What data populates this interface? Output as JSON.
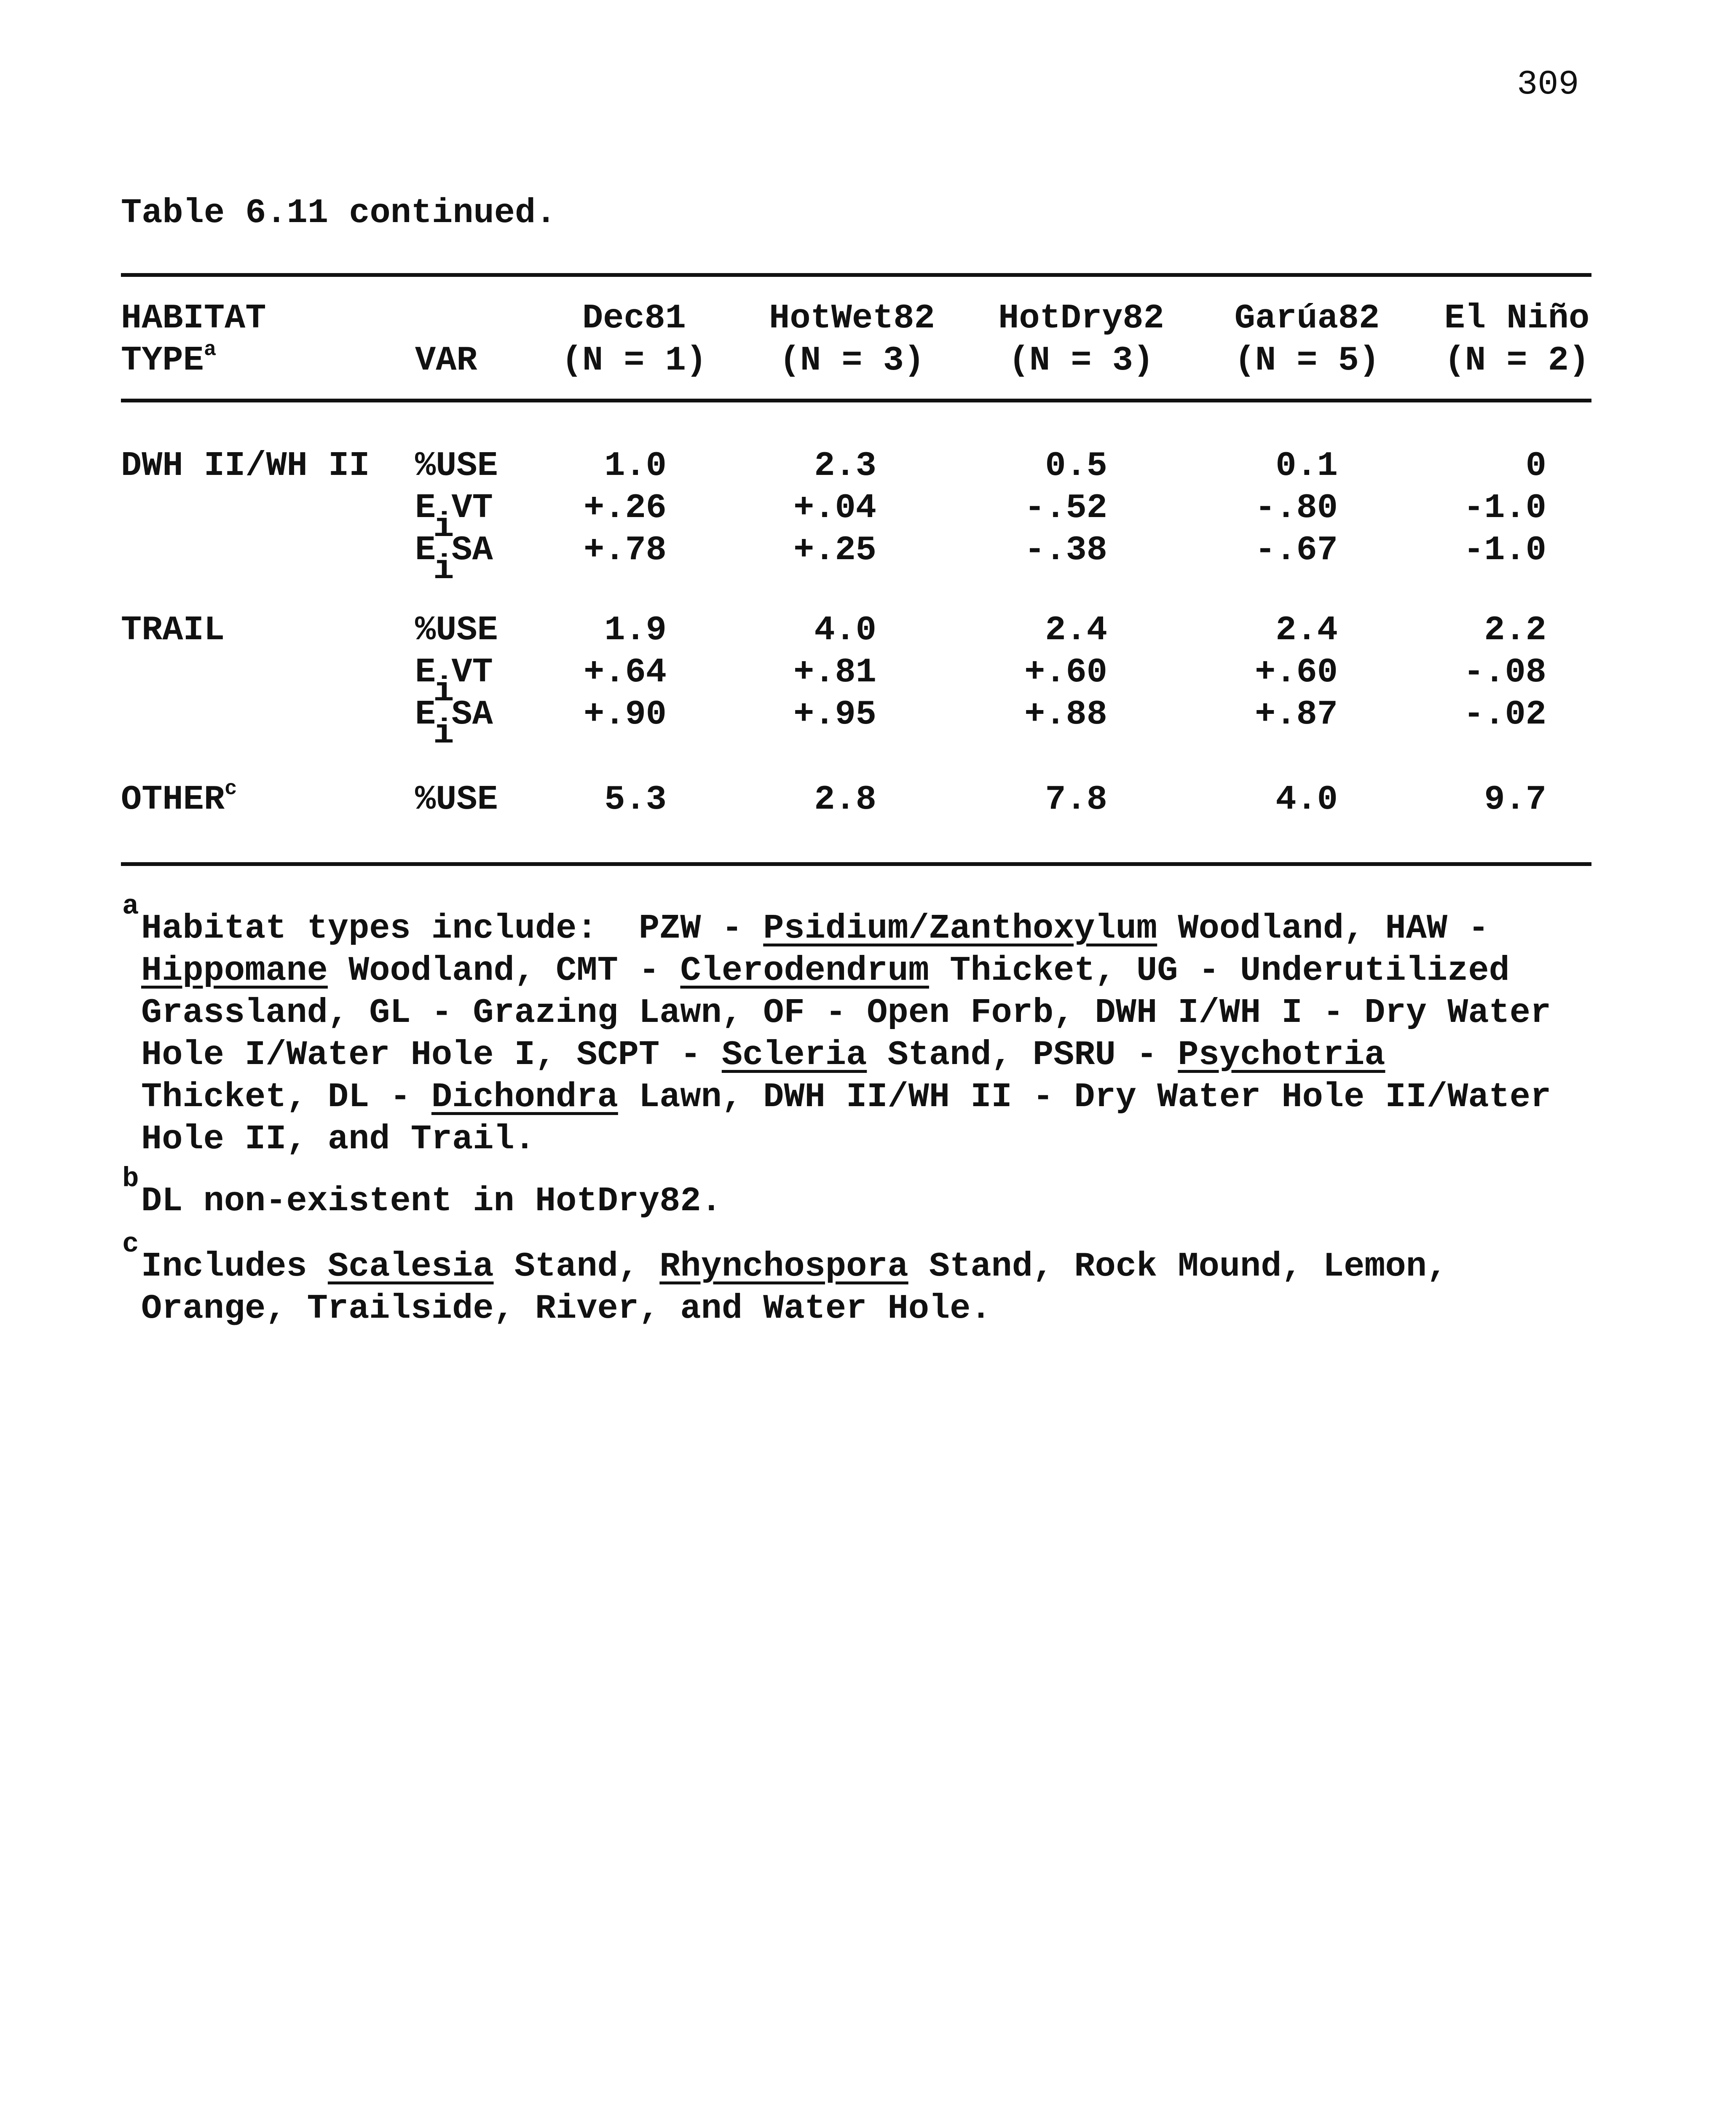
{
  "page_number": "309",
  "caption": "Table 6.11 continued.",
  "table": {
    "header": {
      "habitat_line1": "HABITAT",
      "habitat_line2": "TYPE",
      "habitat_sup": "a",
      "var": "VAR",
      "columns": [
        {
          "name": "Dec81",
          "n": "(N = 1)"
        },
        {
          "name": "HotWet82",
          "n": "(N = 3)"
        },
        {
          "name": "HotDry82",
          "n": "(N = 3)"
        },
        {
          "name": "Garúa82",
          "n": "(N = 5)"
        },
        {
          "name": "El Niño",
          "n": "(N = 2)"
        }
      ]
    },
    "groups": [
      {
        "habitat": "DWH II/WH II",
        "sup": "",
        "rows": [
          {
            "var": "%USE",
            "values": [
              "1.0",
              "2.3",
              "0.5",
              "0.1",
              "0"
            ]
          },
          {
            "var": "E",
            "var_sub": "i",
            "var_rest": "VT",
            "values": [
              "+.26",
              "+.04",
              "-.52",
              "-.80",
              "-1.0"
            ]
          },
          {
            "var": "E",
            "var_sub": "i",
            "var_rest": "SA",
            "values": [
              "+.78",
              "+.25",
              "-.38",
              "-.67",
              "-1.0"
            ]
          }
        ]
      },
      {
        "habitat": "TRAIL",
        "sup": "",
        "rows": [
          {
            "var": "%USE",
            "values": [
              "1.9",
              "4.0",
              "2.4",
              "2.4",
              "2.2"
            ]
          },
          {
            "var": "E",
            "var_sub": "i",
            "var_rest": "VT",
            "values": [
              "+.64",
              "+.81",
              "+.60",
              "+.60",
              "-.08"
            ]
          },
          {
            "var": "E",
            "var_sub": "i",
            "var_rest": "SA",
            "values": [
              "+.90",
              "+.95",
              "+.88",
              "+.87",
              "-.02"
            ]
          }
        ]
      },
      {
        "habitat": "OTHER",
        "sup": "c",
        "rows": [
          {
            "var": "%USE",
            "values": [
              "5.3",
              "2.8",
              "7.8",
              "4.0",
              "9.7"
            ]
          }
        ]
      }
    ]
  },
  "footnotes": [
    {
      "mark": "a",
      "lines": [
        [
          {
            "t": "Habitat types include:  PZW - "
          },
          {
            "t": "Psidium/Zanthoxylum",
            "u": true
          },
          {
            "t": " Woodland, HAW -"
          }
        ],
        [
          {
            "t": "Hippomane",
            "u": true
          },
          {
            "t": " Woodland, CMT - "
          },
          {
            "t": "Clerodendrum",
            "u": true
          },
          {
            "t": " Thicket, UG - Underutilized"
          }
        ],
        [
          {
            "t": "Grassland, GL - Grazing Lawn, OF - Open Forb, DWH I/WH I - Dry Water"
          }
        ],
        [
          {
            "t": "Hole I/Water Hole I, SCPT - "
          },
          {
            "t": "Scleria",
            "u": true
          },
          {
            "t": " Stand, PSRU - "
          },
          {
            "t": "Psychotria",
            "u": true
          }
        ],
        [
          {
            "t": "Thicket, DL - "
          },
          {
            "t": "Dichondra",
            "u": true
          },
          {
            "t": " Lawn, DWH II/WH II - Dry Water Hole II/Water"
          }
        ],
        [
          {
            "t": "Hole II, and Trail."
          }
        ]
      ]
    },
    {
      "mark": "b",
      "lines": [
        [
          {
            "t": "DL non-existent in HotDry82."
          }
        ]
      ]
    },
    {
      "mark": "c",
      "lines": [
        [
          {
            "t": "Includes "
          },
          {
            "t": "Scalesia",
            "u": true
          },
          {
            "t": " Stand, "
          },
          {
            "t": "Rhynchospora",
            "u": true
          },
          {
            "t": " Stand, Rock Mound, Lemon,"
          }
        ],
        [
          {
            "t": "Orange, Trailside, River, and Water Hole."
          }
        ]
      ]
    }
  ]
}
